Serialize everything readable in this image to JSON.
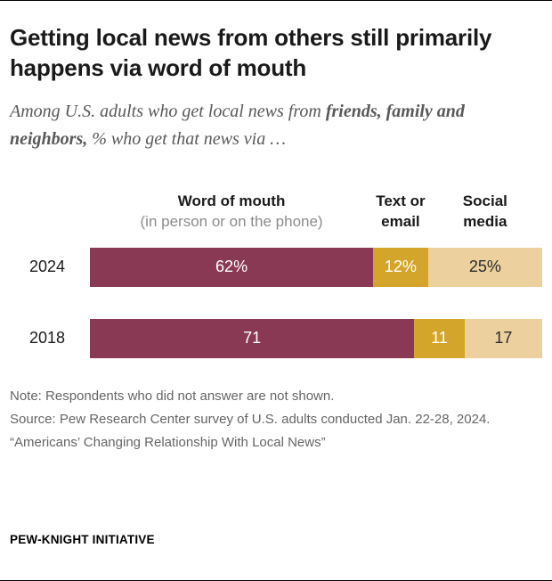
{
  "header": {
    "title": "Getting local news from others still primarily happens via word of mouth",
    "subtitle": {
      "prefix": "Among U.S. adults who get local news from ",
      "bold": "friends, family and neighbors,",
      "suffix": " % who get that news via …"
    }
  },
  "chart_data": {
    "type": "bar",
    "orientation": "horizontal",
    "stacked": true,
    "categories": [
      "2024",
      "2018"
    ],
    "series": [
      {
        "key": "word-of-mouth",
        "name": "Word of mouth (in person or on the phone)",
        "color": "#8a3954",
        "label_color": "#ffffff",
        "values": [
          62,
          71
        ],
        "labels": [
          "62%",
          "71"
        ]
      },
      {
        "key": "text-or-email",
        "name": "Text or email",
        "color": "#d3a62b",
        "label_color": "#ffffff",
        "values": [
          12,
          11
        ],
        "labels": [
          "12%",
          "11"
        ]
      },
      {
        "key": "social-media",
        "name": "Social media",
        "color": "#ecd09e",
        "label_color": "#2b2b2b",
        "values": [
          25,
          17
        ],
        "labels": [
          "25%",
          "17"
        ]
      }
    ],
    "col_headers": [
      {
        "label": "Word of mouth",
        "sublabel": "(in person or on the phone)"
      },
      {
        "label": "Text or email",
        "sublabel": ""
      },
      {
        "label": "Social media",
        "sublabel": ""
      }
    ],
    "xlim": [
      0,
      99
    ],
    "value_format": "percent",
    "legend_position": "top",
    "grid": false
  },
  "footer": {
    "note": "Note: Respondents who did not answer are not shown.",
    "source": "Source: Pew Research Center survey of U.S. adults conducted Jan. 22-28, 2024.",
    "report_title": "“Americans’ Changing Relationship With Local News”",
    "brand": "PEW-KNIGHT INITIATIVE"
  }
}
